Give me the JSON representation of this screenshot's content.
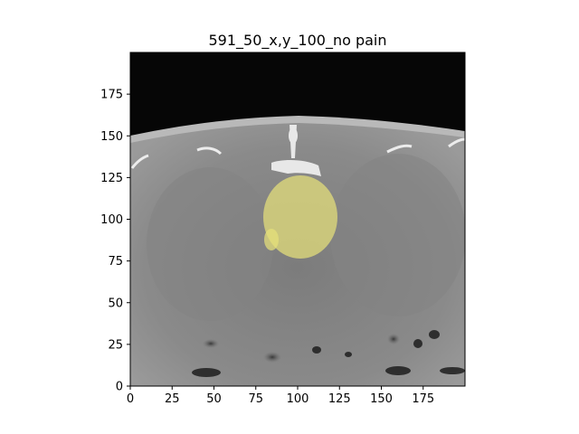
{
  "figure": {
    "title": "591_50_x,y_100_no pain"
  },
  "chart_data": {
    "type": "image",
    "title": "591_50_x,y_100_no pain",
    "xlabel": "",
    "ylabel": "",
    "xlim": [
      0,
      200
    ],
    "ylim": [
      0,
      200
    ],
    "x_ticks": [
      0,
      25,
      50,
      75,
      100,
      125,
      150,
      175
    ],
    "y_ticks": [
      0,
      25,
      50,
      75,
      100,
      125,
      150,
      175
    ],
    "grid": false,
    "colors": {
      "overlay": "#e6e07a",
      "bone": "#f0f0f0",
      "soft_tissue": "#8a8a8a",
      "air": "#0a0a0a"
    }
  }
}
